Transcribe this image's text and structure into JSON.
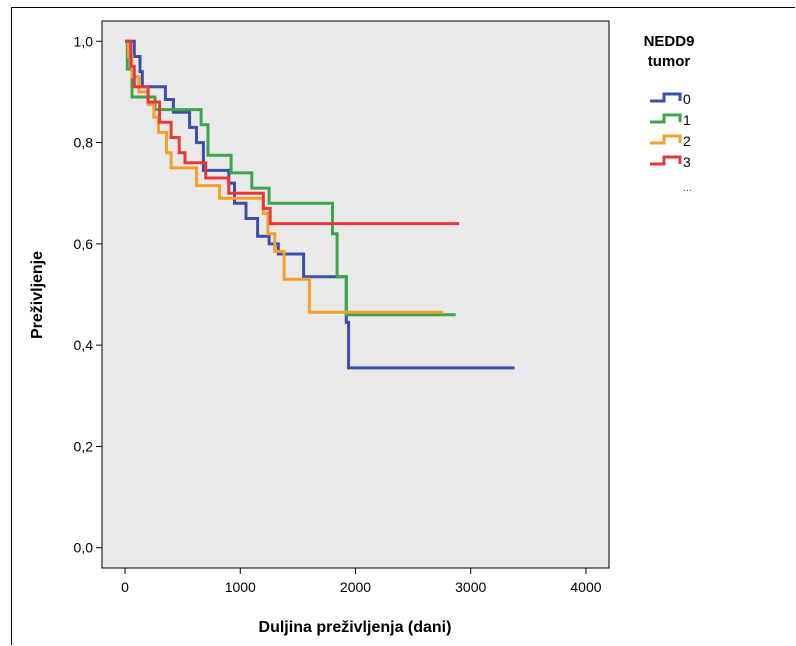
{
  "chart_data": {
    "type": "line",
    "xlabel": "Duljina preživljenja (dani)",
    "ylabel": "Preživljenje",
    "xlim": [
      -200,
      4200
    ],
    "ylim": [
      -0.04,
      1.04
    ],
    "x_ticks": [
      0,
      1000,
      2000,
      3000,
      4000
    ],
    "x_tick_labels": [
      "0",
      "1000",
      "2000",
      "3000",
      "4000"
    ],
    "y_ticks": [
      0.0,
      0.2,
      0.4,
      0.6,
      0.8,
      1.0
    ],
    "y_tick_labels": [
      "0,0",
      "0,2",
      "0,4",
      "0,6",
      "0,8",
      "1,0"
    ],
    "grid": false,
    "background": "#e9e9e9",
    "legend": {
      "title_line1": "NEDD9",
      "title_line2": "tumor",
      "more": "...",
      "position": "right"
    },
    "series": [
      {
        "name": "0",
        "color": "#3b4fa6",
        "points": [
          [
            0,
            1.0
          ],
          [
            80,
            1.0
          ],
          [
            80,
            0.97
          ],
          [
            130,
            0.97
          ],
          [
            130,
            0.94
          ],
          [
            150,
            0.94
          ],
          [
            150,
            0.91
          ],
          [
            350,
            0.91
          ],
          [
            350,
            0.885
          ],
          [
            420,
            0.885
          ],
          [
            420,
            0.86
          ],
          [
            560,
            0.86
          ],
          [
            560,
            0.83
          ],
          [
            620,
            0.83
          ],
          [
            620,
            0.8
          ],
          [
            680,
            0.8
          ],
          [
            680,
            0.745
          ],
          [
            900,
            0.745
          ],
          [
            900,
            0.72
          ],
          [
            950,
            0.72
          ],
          [
            950,
            0.68
          ],
          [
            1050,
            0.68
          ],
          [
            1050,
            0.65
          ],
          [
            1150,
            0.65
          ],
          [
            1150,
            0.615
          ],
          [
            1250,
            0.615
          ],
          [
            1250,
            0.6
          ],
          [
            1330,
            0.6
          ],
          [
            1330,
            0.58
          ],
          [
            1550,
            0.58
          ],
          [
            1550,
            0.535
          ],
          [
            1920,
            0.535
          ],
          [
            1920,
            0.445
          ],
          [
            1940,
            0.445
          ],
          [
            1940,
            0.355
          ],
          [
            3380,
            0.355
          ]
        ]
      },
      {
        "name": "1",
        "color": "#3aa649",
        "points": [
          [
            0,
            1.0
          ],
          [
            20,
            1.0
          ],
          [
            20,
            0.945
          ],
          [
            60,
            0.945
          ],
          [
            60,
            0.89
          ],
          [
            260,
            0.89
          ],
          [
            260,
            0.865
          ],
          [
            660,
            0.865
          ],
          [
            660,
            0.835
          ],
          [
            720,
            0.835
          ],
          [
            720,
            0.775
          ],
          [
            920,
            0.775
          ],
          [
            920,
            0.74
          ],
          [
            1100,
            0.74
          ],
          [
            1100,
            0.71
          ],
          [
            1250,
            0.71
          ],
          [
            1250,
            0.68
          ],
          [
            1800,
            0.68
          ],
          [
            1800,
            0.62
          ],
          [
            1840,
            0.62
          ],
          [
            1840,
            0.535
          ],
          [
            1920,
            0.535
          ],
          [
            1920,
            0.46
          ],
          [
            2870,
            0.46
          ]
        ]
      },
      {
        "name": "2",
        "color": "#f5a02b",
        "points": [
          [
            0,
            1.0
          ],
          [
            30,
            1.0
          ],
          [
            30,
            0.97
          ],
          [
            60,
            0.97
          ],
          [
            60,
            0.93
          ],
          [
            120,
            0.93
          ],
          [
            120,
            0.9
          ],
          [
            200,
            0.9
          ],
          [
            200,
            0.875
          ],
          [
            250,
            0.875
          ],
          [
            250,
            0.85
          ],
          [
            290,
            0.85
          ],
          [
            290,
            0.82
          ],
          [
            360,
            0.82
          ],
          [
            360,
            0.78
          ],
          [
            400,
            0.78
          ],
          [
            400,
            0.75
          ],
          [
            620,
            0.75
          ],
          [
            620,
            0.715
          ],
          [
            820,
            0.715
          ],
          [
            820,
            0.69
          ],
          [
            1200,
            0.69
          ],
          [
            1200,
            0.66
          ],
          [
            1240,
            0.66
          ],
          [
            1240,
            0.62
          ],
          [
            1300,
            0.62
          ],
          [
            1300,
            0.585
          ],
          [
            1380,
            0.585
          ],
          [
            1380,
            0.53
          ],
          [
            1600,
            0.53
          ],
          [
            1600,
            0.465
          ],
          [
            2760,
            0.465
          ]
        ]
      },
      {
        "name": "3",
        "color": "#e8383d",
        "points": [
          [
            0,
            1.0
          ],
          [
            50,
            1.0
          ],
          [
            50,
            0.95
          ],
          [
            80,
            0.95
          ],
          [
            80,
            0.91
          ],
          [
            200,
            0.91
          ],
          [
            200,
            0.88
          ],
          [
            300,
            0.88
          ],
          [
            300,
            0.84
          ],
          [
            400,
            0.84
          ],
          [
            400,
            0.81
          ],
          [
            470,
            0.81
          ],
          [
            470,
            0.78
          ],
          [
            520,
            0.78
          ],
          [
            520,
            0.76
          ],
          [
            700,
            0.76
          ],
          [
            700,
            0.73
          ],
          [
            900,
            0.73
          ],
          [
            900,
            0.7
          ],
          [
            1200,
            0.7
          ],
          [
            1200,
            0.67
          ],
          [
            1260,
            0.67
          ],
          [
            1260,
            0.64
          ],
          [
            2900,
            0.64
          ]
        ]
      }
    ]
  }
}
